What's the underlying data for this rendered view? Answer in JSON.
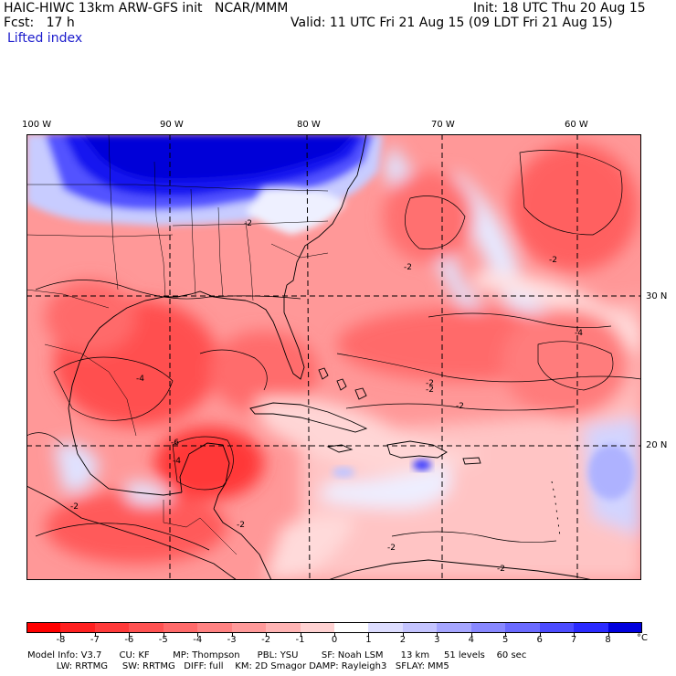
{
  "header": {
    "model_line": "HAIC-HIWC 13km ARW-GFS init   NCAR/MMM",
    "init_line": "Init: 18 UTC Thu 20 Aug 15",
    "fcst_line": "Fcst:   17 h",
    "valid_line": "Valid: 11 UTC Fri 21 Aug 15 (09 LDT Fri 21 Aug 15)",
    "field_name": "Lifted index"
  },
  "map": {
    "longitude_labels": [
      "100 W",
      "90 W",
      "80 W",
      "70 W",
      "60 W"
    ],
    "latitude_labels": [
      "30 N",
      "20 N"
    ],
    "contour_labels": [
      "-2",
      "-2",
      "-2",
      "-4",
      "-2",
      "-2",
      "-4",
      "-2",
      "-2",
      "-2",
      "-6",
      "-2",
      "-2",
      "-4"
    ],
    "colors": {
      "strong_negative": "#ff1c1c",
      "moderate_negative": "#ff7070",
      "weak_negative": "#ffb4b4",
      "near_zero": "#ffffff",
      "weak_positive": "#c8c8ff",
      "moderate_positive": "#6a6aff",
      "strong_positive": "#0000dd"
    }
  },
  "colorbar": {
    "ticks": [
      "-8",
      "-7",
      "-6",
      "-5",
      "-4",
      "-3",
      "-2",
      "-1",
      "0",
      "1",
      "2",
      "3",
      "4",
      "5",
      "6",
      "7",
      "8"
    ],
    "unit": "°C",
    "colors": [
      "#ff0000",
      "#ff2020",
      "#ff3a3a",
      "#ff5252",
      "#ff6a6a",
      "#ff8282",
      "#ff9a9a",
      "#ffb4b4",
      "#ffd2d2",
      "#ffffff",
      "#ddddff",
      "#c4c4ff",
      "#a6a6ff",
      "#8888ff",
      "#6a6aff",
      "#4c4cff",
      "#2a2aff",
      "#0000dd"
    ]
  },
  "model_info": {
    "line1": "Model Info: V3.7      CU: KF        MP: Thompson      PBL: YSU        SF: Noah LSM      13 km     51 levels    60 sec",
    "line2": "          LW: RRTMG     SW: RRTMG   DIFF: full    KM: 2D Smagor DAMP: Rayleigh3   SFLAY: MM5"
  }
}
